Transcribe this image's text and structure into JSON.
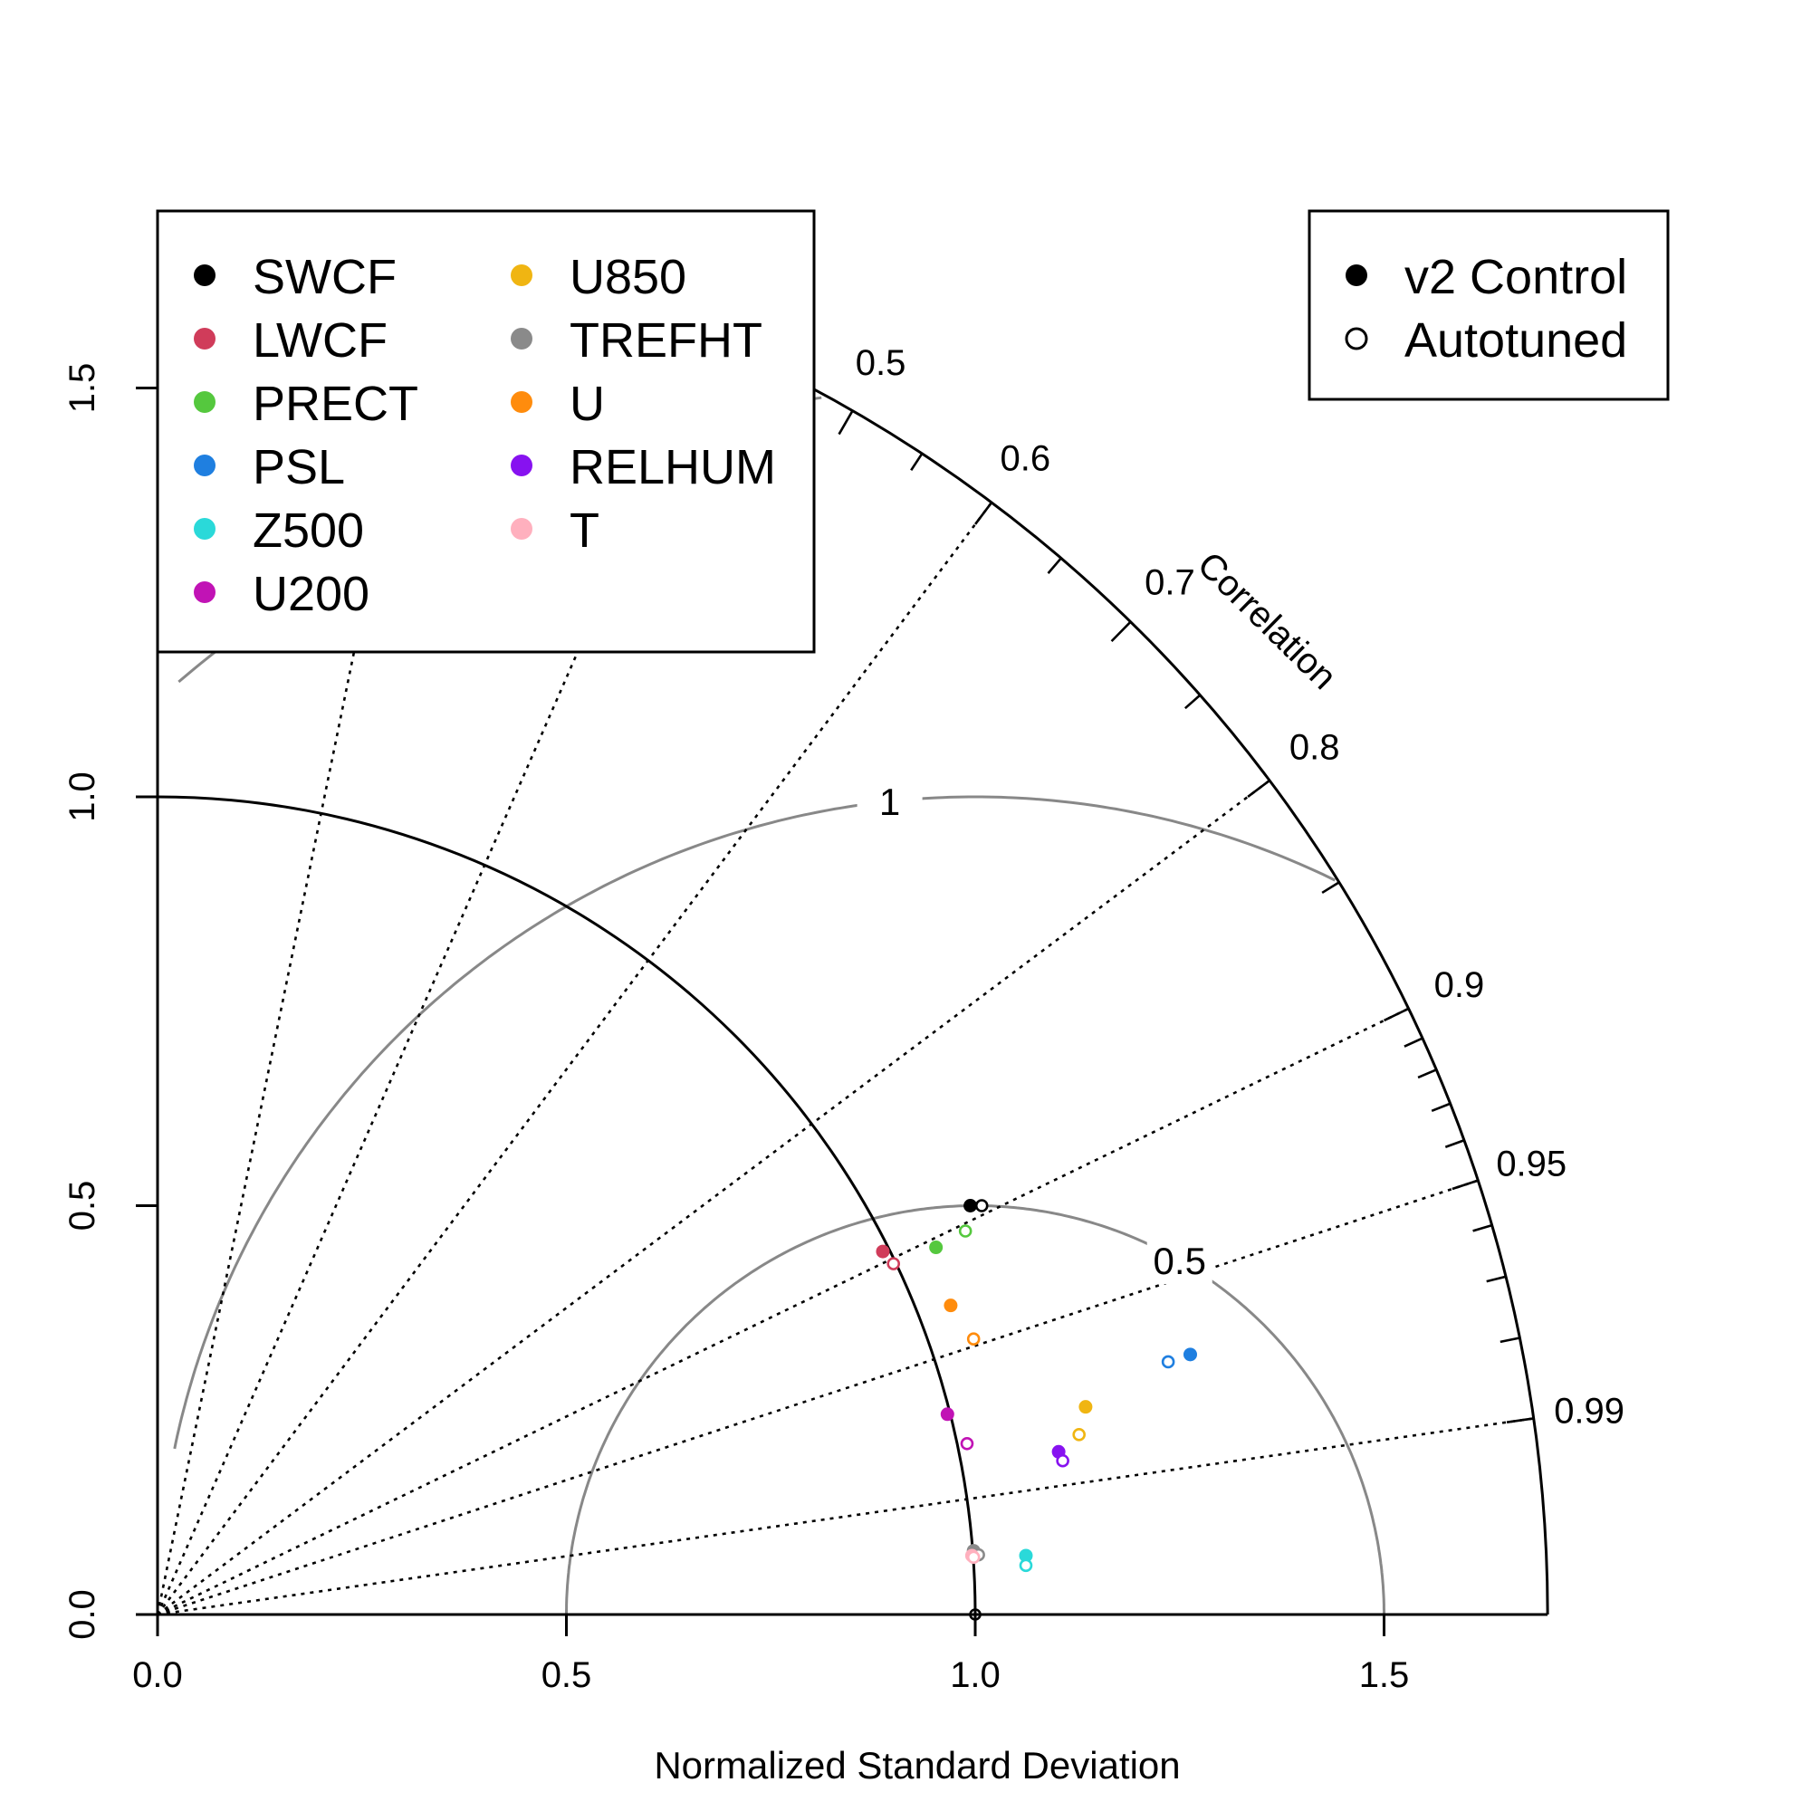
{
  "chart_data": {
    "type": "scatter",
    "subtype": "taylor-diagram",
    "title": "",
    "xlabel": "Normalized Standard Deviation",
    "ylabel": "",
    "corr_title": "Correlation",
    "xlim": [
      0,
      1.7
    ],
    "ylim": [
      0,
      1.7
    ],
    "x_ticks": [
      "0.0",
      "0.5",
      "1.0",
      "1.5"
    ],
    "y_ticks": [
      "0.0",
      "0.5",
      "1.0",
      "1.5"
    ],
    "corr_ticks_major": [
      "0.5",
      "0.6",
      "0.7",
      "0.8",
      "0.9",
      "0.95",
      "0.99"
    ],
    "corr_ticks_minor": [
      0.55,
      0.65,
      0.75,
      0.85,
      0.91,
      0.92,
      0.93,
      0.94,
      0.96,
      0.97,
      0.98
    ],
    "corr_lines": [
      0.2,
      0.4,
      0.6,
      0.8,
      0.9,
      0.95,
      0.99
    ],
    "rms_contours": [
      0.5,
      1.0,
      1.5
    ],
    "rms_labels": [
      "0.5",
      "1"
    ],
    "ref_sd": 1.0,
    "grid": true,
    "variables": [
      {
        "name": "SWCF",
        "color": "#000000",
        "control": [
          0.994,
          0.5
        ],
        "autotuned": [
          1.008,
          0.5
        ]
      },
      {
        "name": "LWCF",
        "color": "#d03c5a",
        "control": [
          0.887,
          0.444
        ],
        "autotuned": [
          0.9,
          0.429
        ]
      },
      {
        "name": "PRECT",
        "color": "#55c83e",
        "control": [
          0.952,
          0.449
        ],
        "autotuned": [
          0.988,
          0.469
        ]
      },
      {
        "name": "PSL",
        "color": "#1f7fe0",
        "control": [
          1.263,
          0.318
        ],
        "autotuned": [
          1.236,
          0.309
        ]
      },
      {
        "name": "Z500",
        "color": "#2ad9d9",
        "control": [
          1.062,
          0.072
        ],
        "autotuned": [
          1.062,
          0.06
        ]
      },
      {
        "name": "U200",
        "color": "#c113b5",
        "control": [
          0.966,
          0.245
        ],
        "autotuned": [
          0.99,
          0.209
        ]
      },
      {
        "name": "U850",
        "color": "#f0b512",
        "control": [
          1.135,
          0.254
        ],
        "autotuned": [
          1.127,
          0.22
        ]
      },
      {
        "name": "TREFHT",
        "color": "#8a8a8a",
        "control": [
          0.998,
          0.078
        ],
        "autotuned": [
          1.004,
          0.073
        ]
      },
      {
        "name": "U",
        "color": "#ff8c0d",
        "control": [
          0.97,
          0.378
        ],
        "autotuned": [
          0.998,
          0.337
        ]
      },
      {
        "name": "RELHUM",
        "color": "#8712f0",
        "control": [
          1.102,
          0.199
        ],
        "autotuned": [
          1.107,
          0.188
        ]
      },
      {
        "name": "T",
        "color": "#ffb0be",
        "control": [
          0.996,
          0.072
        ],
        "autotuned": [
          0.998,
          0.07
        ]
      }
    ],
    "reference_point": [
      1.0,
      0.0
    ],
    "legend_variables_placement": "top-left",
    "legend_symbols": {
      "placement": "top-right",
      "items": [
        {
          "label": "v2 Control",
          "marker": "filled"
        },
        {
          "label": "Autotuned",
          "marker": "open"
        }
      ]
    }
  }
}
